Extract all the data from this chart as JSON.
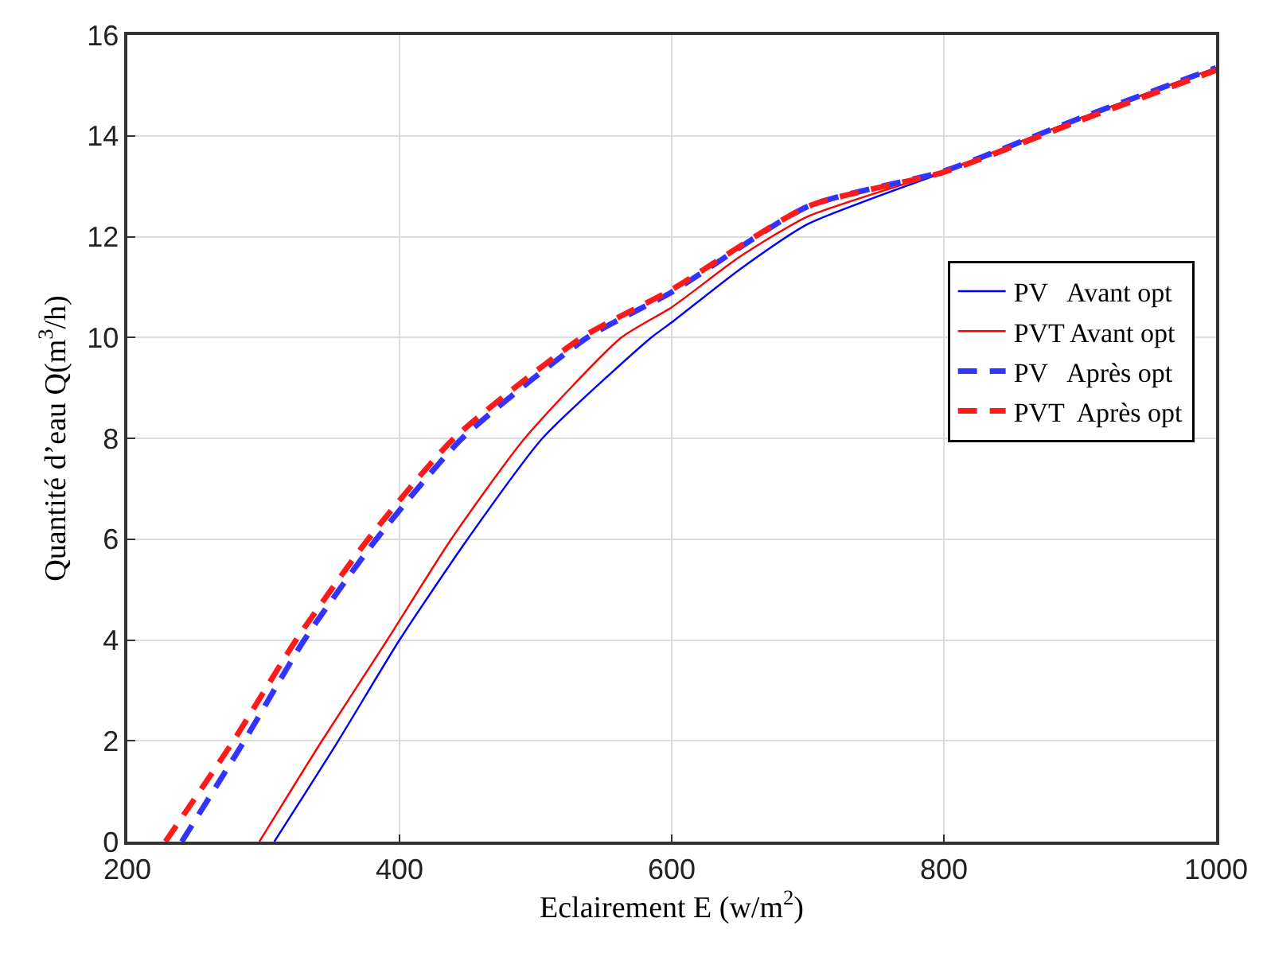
{
  "chart_data": {
    "type": "line",
    "xlabel": "Eclairement E (w/m$^{2}$)",
    "ylabel": "Quantité d’eau Q(m$^{3}$/h)",
    "xlim": [
      200,
      1000
    ],
    "xticks": [
      200,
      400,
      600,
      800,
      1000
    ],
    "ylim": [
      0,
      16
    ],
    "yticks": [
      0,
      2,
      4,
      6,
      8,
      10,
      12,
      14,
      16
    ],
    "grid": true,
    "legend": "right",
    "marker": "none",
    "series": [
      {
        "name": "PV   Avant opt",
        "color": "#0000ff",
        "line_style": "solid",
        "x": [
          308,
          355,
          400,
          450,
          505,
          585,
          600,
          650,
          700,
          800,
          900,
          1000
        ],
        "values": [
          0,
          2,
          4,
          6,
          8,
          10,
          10.3,
          11.35,
          12.25,
          13.28,
          14.35,
          15.35
        ]
      },
      {
        "name": "PVT Avant opt",
        "color": "#ff0000",
        "line_style": "solid",
        "x": [
          297,
          343,
          391,
          438,
          492,
          563,
          600,
          650,
          700,
          800,
          900,
          1000
        ],
        "values": [
          0,
          2,
          4,
          6,
          8,
          10,
          10.6,
          11.6,
          12.4,
          13.3,
          14.35,
          15.35
        ]
      },
      {
        "name": "PV   Après opt",
        "color": "#3333ff",
        "line_style": "dashed",
        "x": [
          240,
          286,
          330,
          383,
          446,
          538,
          600,
          700,
          800,
          900,
          1000
        ],
        "values": [
          0,
          2,
          4,
          6,
          8,
          10,
          10.9,
          12.6,
          13.3,
          14.35,
          15.35
        ]
      },
      {
        "name": "PVT  Après opt",
        "color": "#ff1a1a",
        "line_style": "dashed",
        "x": [
          228,
          278,
          324,
          377,
          440,
          534,
          600,
          700,
          800,
          900,
          1000
        ],
        "values": [
          0,
          2,
          4,
          6,
          8,
          10,
          10.95,
          12.6,
          13.28,
          14.3,
          15.3
        ]
      }
    ]
  }
}
